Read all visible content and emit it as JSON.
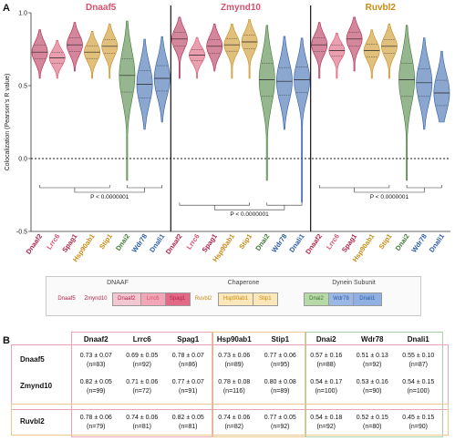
{
  "panel_a": "A",
  "panel_b": "B",
  "chart_data": {
    "type": "violin",
    "ylabel": "Colocalization (Pearson's R value)",
    "ylim": [
      -0.5,
      1.0
    ],
    "yticks": [
      "1.0",
      "0.5",
      "0.0",
      "-0.5"
    ],
    "reference_line": 0.0,
    "categories": [
      "Dnaaf2",
      "Lrrc6",
      "Spag1",
      "Hsp90ab1",
      "Stip1",
      "Dnai2",
      "Wdr78",
      "Dnali1"
    ],
    "category_colors": [
      "#b0234a",
      "#d9506e",
      "#b0234a",
      "#c98a12",
      "#c98a12",
      "#3f7a33",
      "#2b5ca8",
      "#2b5ca8"
    ],
    "panels": [
      {
        "title": "Dnaaf5",
        "title_color": "#d9506e",
        "medians": [
          0.73,
          0.69,
          0.78,
          0.73,
          0.77,
          0.57,
          0.51,
          0.55
        ],
        "significance": "P < 0.0000001"
      },
      {
        "title": "Zmynd10",
        "title_color": "#d9506e",
        "medians": [
          0.82,
          0.71,
          0.77,
          0.78,
          0.8,
          0.54,
          0.53,
          0.54
        ],
        "significance": "P < 0.0000001"
      },
      {
        "title": "Ruvbl2",
        "title_color": "#c98a12",
        "medians": [
          0.78,
          0.74,
          0.82,
          0.74,
          0.77,
          0.54,
          0.52,
          0.45
        ],
        "significance": "P < 0.0000001"
      }
    ]
  },
  "legend": {
    "groups": [
      {
        "title": "DNAAF",
        "text_items": [
          "Dnaaf5",
          "Zmynd10"
        ],
        "boxes": [
          "Dnaaf2",
          "Lrrc6",
          "Spag1"
        ]
      },
      {
        "title": "Chaperone",
        "text_items": [
          "Ruvbl2"
        ],
        "boxes": [
          "Hsp90ab1",
          "Stip1"
        ]
      },
      {
        "title": "Dynein Subunit",
        "text_items": [],
        "boxes": [
          "Dnai2",
          "Wdr78",
          "Dnali1"
        ]
      }
    ]
  },
  "table": {
    "columns": [
      "Dnaaf2",
      "Lrrc6",
      "Spag1",
      "Hsp90ab1",
      "Stip1",
      "Dnai2",
      "Wdr78",
      "Dnali1"
    ],
    "rows": [
      {
        "name": "Dnaaf5",
        "values": [
          "0.73 ± 0.07",
          "0.69 ± 0.05",
          "0.78 ± 0.07",
          "0.73 ± 0.06",
          "0.77 ± 0.06",
          "0.57 ± 0.16",
          "0.51 ± 0.13",
          "0.55 ± 0.10"
        ],
        "n": [
          "(n=83)",
          "(n=92)",
          "(n=86)",
          "(n=89)",
          "(n=95)",
          "(n=88)",
          "(n=92)",
          "(n=87)"
        ]
      },
      {
        "name": "Zmynd10",
        "values": [
          "0.82 ± 0.05",
          "0.71 ± 0.06",
          "0.77 ± 0.07",
          "0.78 ± 0.08",
          "0.80 ± 0.08",
          "0.54 ± 0.17",
          "0.53 ± 0.16",
          "0.54 ± 0.15"
        ],
        "n": [
          "(n=99)",
          "(n=72)",
          "(n=91)",
          "(n=116)",
          "(n=89)",
          "(n=100)",
          "(n=90)",
          "(n=100)"
        ]
      },
      {
        "name": "Ruvbl2",
        "values": [
          "0.78 ± 0.06",
          "0.74 ± 0.06",
          "0.82 ± 0.05",
          "0.74 ± 0.06",
          "0.77 ± 0.05",
          "0.54 ± 0.18",
          "0.52 ± 0.15",
          "0.45 ± 0.15"
        ],
        "n": [
          "(n=79)",
          "(n=81)",
          "(n=81)",
          "(n=82)",
          "(n=92)",
          "(n=92)",
          "(n=80)",
          "(n=90)"
        ]
      }
    ]
  }
}
